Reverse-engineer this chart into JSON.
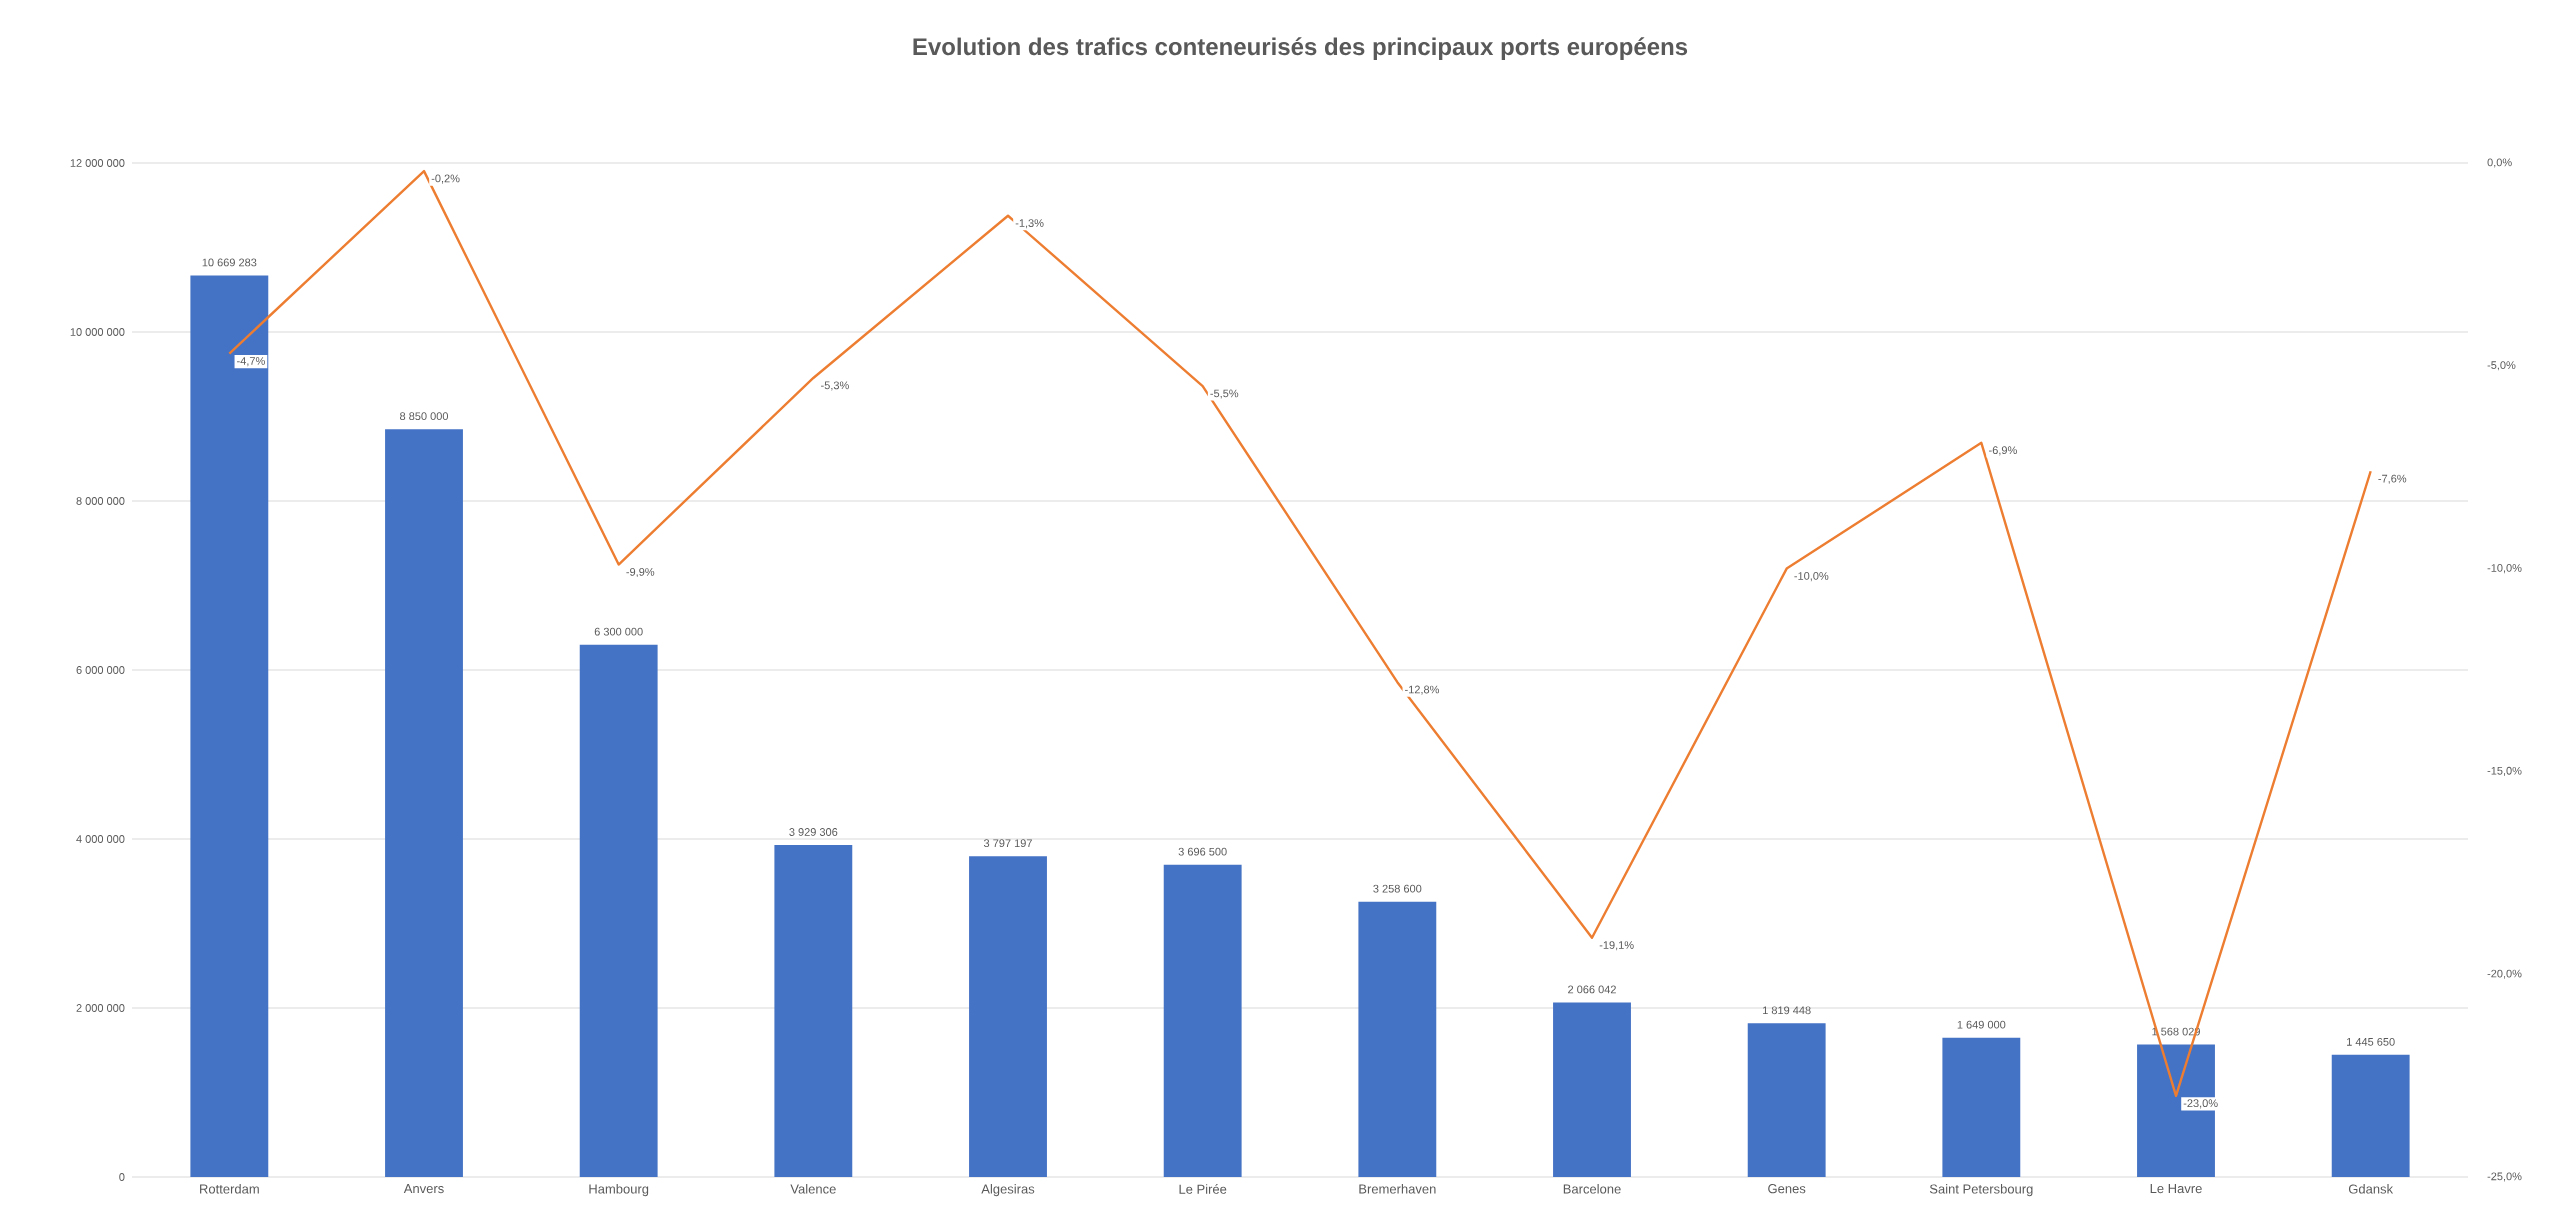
{
  "chart_data": {
    "type": "bar",
    "title": "Evolution des trafics conteneurisés des principaux ports européens",
    "categories": [
      "Rotterdam",
      "Anvers",
      "Hambourg",
      "Valence",
      "Algesiras",
      "Le Pirée",
      "Bremerhaven",
      "Barcelone",
      "Genes",
      "Saint Petersbourg",
      "Le Havre",
      "Gdansk"
    ],
    "series": [
      {
        "color": "#4472c4",
        "values": [
          10669283,
          8850000,
          6300000,
          3929306,
          3797197,
          3696500,
          3258600,
          2066042,
          1819448,
          1649000,
          1568029,
          1445650
        ],
        "value_labels": [
          "10 669 283",
          "8 850 000",
          "6 300 000",
          "3 929 306",
          "3 797 197",
          "3 696 500",
          "3 258 600",
          "2 066 042",
          "1 819 448",
          "1 649 000",
          "1 568 029",
          "1 445 650"
        ]
      },
      {
        "type": "line",
        "axis": "y2",
        "color": "#ed7d31",
        "values": [
          -4.7,
          -0.2,
          -9.9,
          -5.3,
          -1.3,
          -5.5,
          -12.8,
          -19.1,
          -10.0,
          -6.9,
          -23.0,
          -7.6
        ],
        "value_labels": [
          "-4,7%",
          "-0,2%",
          "-9,9%",
          "-5,3%",
          "-1,3%",
          "-5,5%",
          "-12,8%",
          "-19,1%",
          "-10,0%",
          "-6,9%",
          "-23,0%",
          "-7,6%"
        ]
      }
    ],
    "ylim": [
      0,
      12000000
    ],
    "yticks": [
      {
        "value": 0,
        "label": "0"
      },
      {
        "value": 2000000,
        "label": "2 000 000"
      },
      {
        "value": 4000000,
        "label": "4 000 000"
      },
      {
        "value": 6000000,
        "label": "6 000 000"
      },
      {
        "value": 8000000,
        "label": "8 000 000"
      },
      {
        "value": 10000000,
        "label": "10 000 000"
      },
      {
        "value": 12000000,
        "label": "12 000 000"
      }
    ],
    "y2lim": [
      -25,
      0
    ],
    "y2ticks": [
      {
        "value": -25,
        "label": "-25,0%"
      },
      {
        "value": -20,
        "label": "-20,0%"
      },
      {
        "value": -15,
        "label": "-15,0%"
      },
      {
        "value": -10,
        "label": "-10,0%"
      },
      {
        "value": -5,
        "label": "-5,0%"
      },
      {
        "value": 0,
        "label": "0,0%"
      }
    ],
    "grid": "y",
    "marker": "none"
  }
}
